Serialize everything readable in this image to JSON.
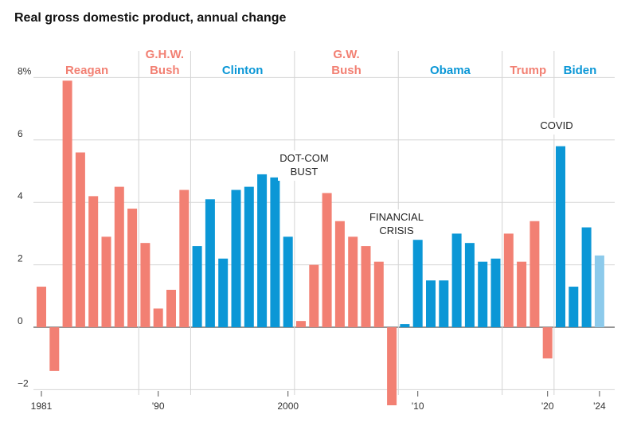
{
  "chart_data": {
    "type": "bar",
    "title": "Real gross domestic product, annual change",
    "xlabel": "",
    "ylabel": "",
    "ylim": [
      -2.2,
      8.3
    ],
    "y_ticks": [
      {
        "value": 8,
        "label": "8%"
      },
      {
        "value": 6,
        "label": "6"
      },
      {
        "value": 4,
        "label": "4"
      },
      {
        "value": 2,
        "label": "2"
      },
      {
        "value": 0,
        "label": "0"
      },
      {
        "value": -2,
        "label": "−2"
      }
    ],
    "x_ticks": [
      {
        "year": 1981,
        "label": "1981"
      },
      {
        "year": 1990,
        "label": "'90"
      },
      {
        "year": 2000,
        "label": "2000"
      },
      {
        "year": 2010,
        "label": "'10"
      },
      {
        "year": 2020,
        "label": "'20"
      },
      {
        "year": 2024,
        "label": "'24"
      }
    ],
    "years": [
      1981,
      1982,
      1983,
      1984,
      1985,
      1986,
      1987,
      1988,
      1989,
      1990,
      1991,
      1992,
      1993,
      1994,
      1995,
      1996,
      1997,
      1998,
      1999,
      2000,
      2001,
      2002,
      2003,
      2004,
      2005,
      2006,
      2007,
      2008,
      2009,
      2010,
      2011,
      2012,
      2013,
      2014,
      2015,
      2016,
      2017,
      2018,
      2019,
      2020,
      2021,
      2022,
      2023,
      2024
    ],
    "values": [
      1.3,
      -1.4,
      7.9,
      5.6,
      4.2,
      2.9,
      4.5,
      3.8,
      2.7,
      0.6,
      1.2,
      4.4,
      2.6,
      4.1,
      2.2,
      4.4,
      4.5,
      4.9,
      4.8,
      2.9,
      0.2,
      2.0,
      4.3,
      3.4,
      2.9,
      2.6,
      2.1,
      -2.5,
      0.1,
      2.8,
      1.5,
      1.5,
      3.0,
      2.7,
      2.1,
      2.2,
      3.0,
      2.1,
      3.4,
      -1.0,
      5.8,
      1.3,
      3.2,
      2.3
    ],
    "presidents": [
      {
        "name": [
          "Reagan"
        ],
        "party": "R",
        "start": 1981,
        "end": 1988
      },
      {
        "name": [
          "G.H.W.",
          "Bush"
        ],
        "party": "R",
        "start": 1989,
        "end": 1992
      },
      {
        "name": [
          "Clinton"
        ],
        "party": "D",
        "start": 1993,
        "end": 2000
      },
      {
        "name": [
          "G.W.",
          "Bush"
        ],
        "party": "R",
        "start": 2001,
        "end": 2008
      },
      {
        "name": [
          "Obama"
        ],
        "party": "D",
        "start": 2009,
        "end": 2016
      },
      {
        "name": [
          "Trump"
        ],
        "party": "R",
        "start": 2017,
        "end": 2020
      },
      {
        "name": [
          "Biden"
        ],
        "party": "D",
        "start": 2021,
        "end": 2024
      }
    ],
    "term_dividers": [
      1989,
      1993,
      2001,
      2009,
      2017,
      2021
    ],
    "annotations": [
      {
        "text": [
          "DOT-COM",
          "BUST"
        ],
        "year": 2001
      },
      {
        "text": [
          "FINANCIAL",
          "CRISIS"
        ],
        "year": 2008
      },
      {
        "text": [
          "COVID"
        ],
        "year": 2020
      }
    ],
    "preliminary_years": [
      2024
    ],
    "colors": {
      "R": "#f28073",
      "D": "#0b97d6",
      "preliminary": "#8ccaeb",
      "grid": "#d4d4d4",
      "zero": "#555555"
    }
  }
}
